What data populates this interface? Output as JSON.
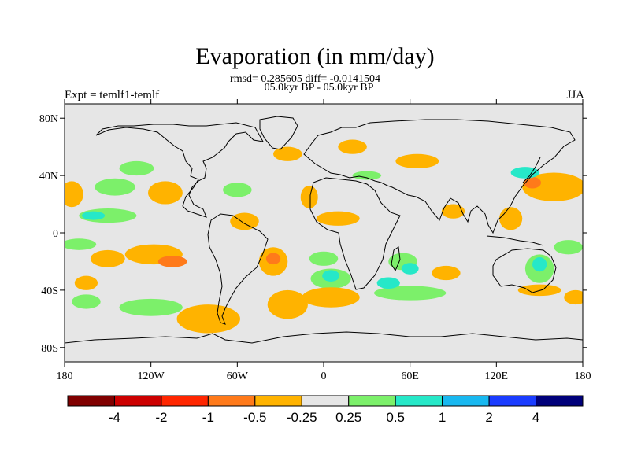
{
  "title": "Evaporation (in mm/day)",
  "stats_line1": "rmsd= 0.285605 diff= -0.0141504",
  "stats_line2": "05.0kyr BP - 05.0kyr BP",
  "left_string": "Expt = temlf1-temlf",
  "right_string": "JJA",
  "lon_ticks": [
    "180",
    "120W",
    "60W",
    "0",
    "60E",
    "120E",
    "180"
  ],
  "lat_ticks": [
    "80N",
    "40N",
    "0",
    "40S",
    "80S"
  ],
  "colors": {
    "background": "#e6e6e6",
    "coast": "#000000",
    "orange": "#ffb300",
    "dark_orange": "#ff7a1a",
    "red": "#ff4d1a",
    "light_green": "#7cf06a",
    "cyan": "#26e8c8",
    "sky": "#18b8f0",
    "blue": "#1a3cff"
  },
  "colorbar": {
    "bins": [
      "#800000",
      "#cc0000",
      "#ff2600",
      "#ff7a1a",
      "#ffb300",
      "#e6e6e6",
      "#7cf06a",
      "#26e8c8",
      "#18b8f0",
      "#1a3cff",
      "#00007a"
    ],
    "labels": [
      "-4",
      "-2",
      "-1",
      "-0.5",
      "-0.25",
      "0.25",
      "0.5",
      "1",
      "2",
      "4"
    ]
  },
  "anomaly_regions": [
    {
      "lon": -175,
      "lat": 27,
      "rx": 8,
      "ry": 9,
      "level": "orange"
    },
    {
      "lon": -145,
      "lat": 32,
      "rx": 14,
      "ry": 6,
      "level": "light_green"
    },
    {
      "lon": -150,
      "lat": 12,
      "rx": 20,
      "ry": 5,
      "level": "light_green"
    },
    {
      "lon": -160,
      "lat": 12,
      "rx": 8,
      "ry": 3,
      "level": "cyan"
    },
    {
      "lon": -110,
      "lat": 28,
      "rx": 12,
      "ry": 8,
      "level": "orange"
    },
    {
      "lon": -118,
      "lat": -15,
      "rx": 20,
      "ry": 7,
      "level": "orange"
    },
    {
      "lon": -105,
      "lat": -20,
      "rx": 10,
      "ry": 4,
      "level": "dark_orange"
    },
    {
      "lon": -150,
      "lat": -18,
      "rx": 12,
      "ry": 6,
      "level": "orange"
    },
    {
      "lon": -170,
      "lat": -8,
      "rx": 12,
      "ry": 4,
      "level": "light_green"
    },
    {
      "lon": -120,
      "lat": -52,
      "rx": 22,
      "ry": 6,
      "level": "light_green"
    },
    {
      "lon": -80,
      "lat": -60,
      "rx": 22,
      "ry": 10,
      "level": "orange"
    },
    {
      "lon": -55,
      "lat": 8,
      "rx": 10,
      "ry": 6,
      "level": "orange"
    },
    {
      "lon": -60,
      "lat": 30,
      "rx": 10,
      "ry": 5,
      "level": "light_green"
    },
    {
      "lon": -35,
      "lat": -20,
      "rx": 10,
      "ry": 10,
      "level": "orange"
    },
    {
      "lon": -35,
      "lat": -18,
      "rx": 5,
      "ry": 4,
      "level": "dark_orange"
    },
    {
      "lon": -25,
      "lat": -50,
      "rx": 14,
      "ry": 10,
      "level": "orange"
    },
    {
      "lon": 0,
      "lat": -18,
      "rx": 10,
      "ry": 5,
      "level": "light_green"
    },
    {
      "lon": 5,
      "lat": -32,
      "rx": 14,
      "ry": 7,
      "level": "light_green"
    },
    {
      "lon": 5,
      "lat": -30,
      "rx": 6,
      "ry": 4,
      "level": "cyan"
    },
    {
      "lon": 5,
      "lat": -45,
      "rx": 20,
      "ry": 7,
      "level": "orange"
    },
    {
      "lon": 55,
      "lat": -20,
      "rx": 10,
      "ry": 6,
      "level": "light_green"
    },
    {
      "lon": 60,
      "lat": -25,
      "rx": 6,
      "ry": 4,
      "level": "cyan"
    },
    {
      "lon": 85,
      "lat": -28,
      "rx": 10,
      "ry": 5,
      "level": "orange"
    },
    {
      "lon": 60,
      "lat": -42,
      "rx": 25,
      "ry": 5,
      "level": "light_green"
    },
    {
      "lon": 45,
      "lat": -35,
      "rx": 8,
      "ry": 4,
      "level": "cyan"
    },
    {
      "lon": 150,
      "lat": -25,
      "rx": 10,
      "ry": 10,
      "level": "light_green"
    },
    {
      "lon": 150,
      "lat": -22,
      "rx": 5,
      "ry": 5,
      "level": "cyan"
    },
    {
      "lon": 150,
      "lat": -40,
      "rx": 15,
      "ry": 4,
      "level": "orange"
    },
    {
      "lon": 160,
      "lat": 32,
      "rx": 22,
      "ry": 10,
      "level": "orange"
    },
    {
      "lon": 145,
      "lat": 35,
      "rx": 6,
      "ry": 4,
      "level": "dark_orange"
    },
    {
      "lon": 130,
      "lat": 10,
      "rx": 8,
      "ry": 8,
      "level": "orange"
    },
    {
      "lon": 140,
      "lat": 42,
      "rx": 10,
      "ry": 4,
      "level": "cyan"
    },
    {
      "lon": 90,
      "lat": 15,
      "rx": 8,
      "ry": 5,
      "level": "orange"
    },
    {
      "lon": 65,
      "lat": 50,
      "rx": 15,
      "ry": 5,
      "level": "orange"
    },
    {
      "lon": 20,
      "lat": 60,
      "rx": 10,
      "ry": 5,
      "level": "orange"
    },
    {
      "lon": -25,
      "lat": 55,
      "rx": 10,
      "ry": 5,
      "level": "orange"
    },
    {
      "lon": 30,
      "lat": 40,
      "rx": 10,
      "ry": 3,
      "level": "light_green"
    },
    {
      "lon": 10,
      "lat": 10,
      "rx": 15,
      "ry": 5,
      "level": "orange"
    },
    {
      "lon": -10,
      "lat": 25,
      "rx": 6,
      "ry": 8,
      "level": "orange"
    },
    {
      "lon": -165,
      "lat": -35,
      "rx": 8,
      "ry": 5,
      "level": "orange"
    },
    {
      "lon": -165,
      "lat": -48,
      "rx": 10,
      "ry": 5,
      "level": "light_green"
    },
    {
      "lon": -130,
      "lat": 45,
      "rx": 12,
      "ry": 5,
      "level": "light_green"
    },
    {
      "lon": 170,
      "lat": -10,
      "rx": 10,
      "ry": 5,
      "level": "light_green"
    },
    {
      "lon": 175,
      "lat": -45,
      "rx": 8,
      "ry": 5,
      "level": "orange"
    }
  ]
}
